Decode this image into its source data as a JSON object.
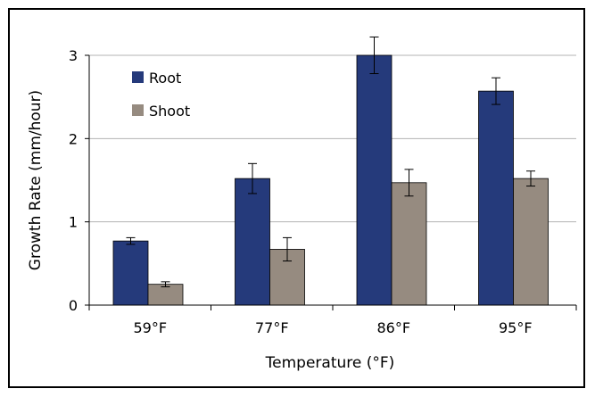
{
  "chart_data": {
    "type": "bar",
    "title": "",
    "xlabel": "Temperature (°F)",
    "ylabel": "Growth Rate (mm/hour)",
    "categories": [
      "59°F",
      "77°F",
      "86°F",
      "95°F"
    ],
    "ylim": [
      0,
      3
    ],
    "yticks": [
      0,
      1,
      2,
      3
    ],
    "grid": true,
    "legend_position": "top-left",
    "series": [
      {
        "name": "Root",
        "color": "#253a7b",
        "values": [
          0.77,
          1.52,
          3.0,
          2.57
        ],
        "errors": [
          0.04,
          0.18,
          0.22,
          0.16
        ]
      },
      {
        "name": "Shoot",
        "color": "#968b80",
        "values": [
          0.25,
          0.67,
          1.47,
          1.52
        ],
        "errors": [
          0.03,
          0.14,
          0.16,
          0.09
        ]
      }
    ]
  }
}
